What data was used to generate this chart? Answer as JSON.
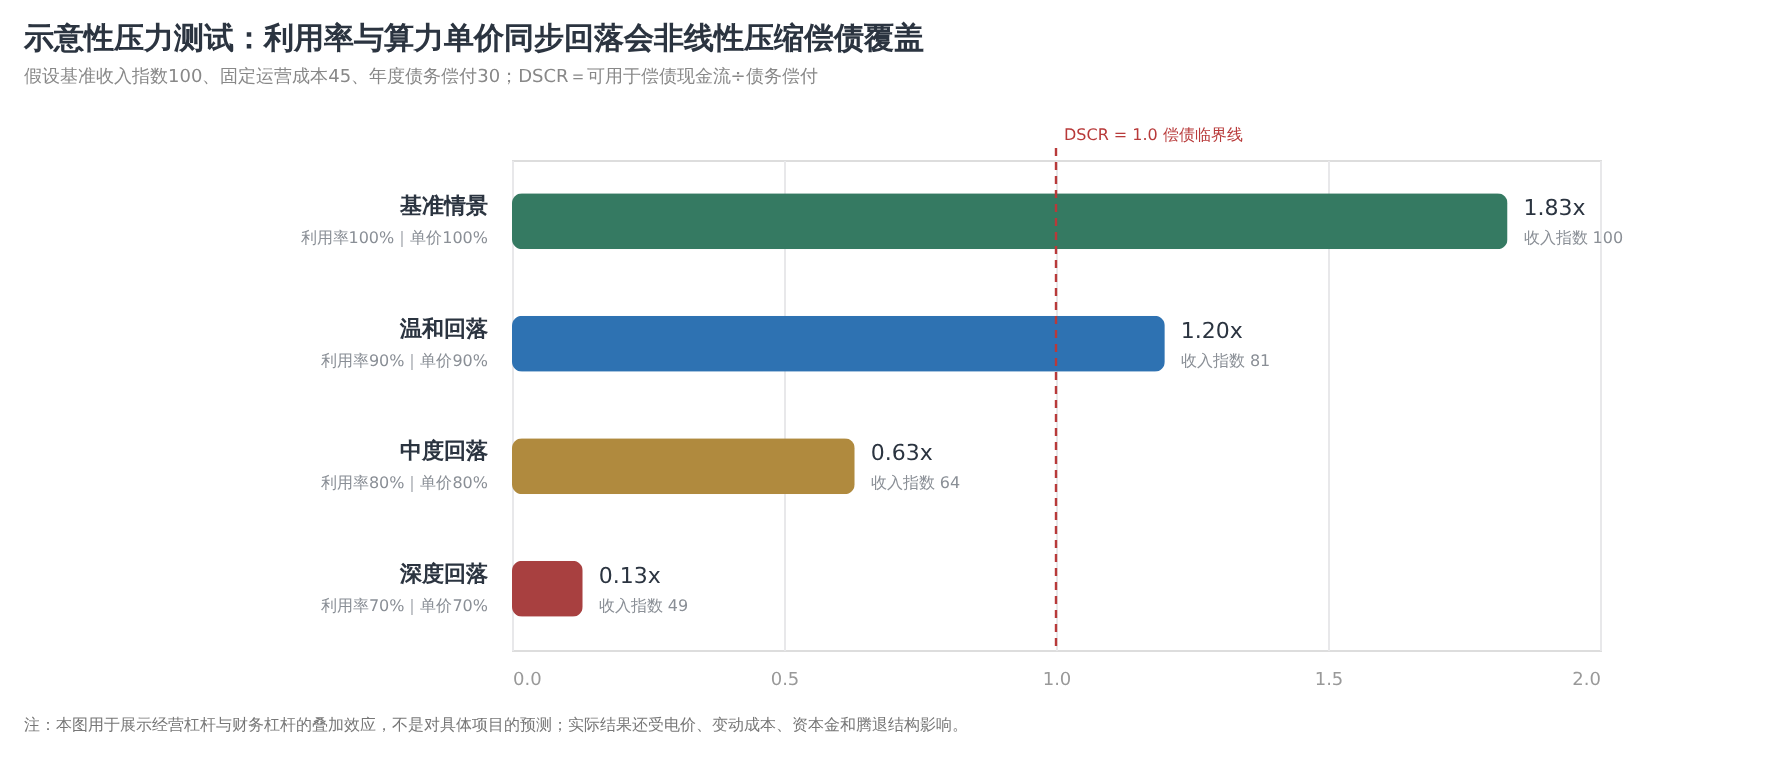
{
  "chart_data": {
    "type": "bar",
    "orientation": "horizontal",
    "title": "示意性压力测试：利用率与算力单价同步回落会非线性压缩偿债覆盖",
    "subtitle": "假设基准收入指数100、固定运营成本45、年度债务偿付30；DSCR＝可用于偿债现金流÷债务偿付",
    "categories": [
      "基准情景",
      "温和回落",
      "中度回落",
      "深度回落"
    ],
    "values": [
      1.83,
      1.2,
      0.63,
      0.13
    ],
    "colors": [
      "#357a62",
      "#2e72b2",
      "#b08a3e",
      "#a84040"
    ],
    "value_labels": [
      "1.83x",
      "1.20x",
      "0.63x",
      "0.13x"
    ],
    "xlim": [
      0,
      2
    ],
    "xticks": [
      {
        "value": 0,
        "label": "0.0"
      },
      {
        "value": 0.5,
        "label": "0.5"
      },
      {
        "value": 1,
        "label": "1.0"
      },
      {
        "value": 1.5,
        "label": "1.5"
      },
      {
        "value": 2,
        "label": "2.0"
      }
    ],
    "grid": "x",
    "ref_lines": [
      {
        "axis": "x",
        "value": 1.0,
        "label": "DSCR = 1.0 偿债临界线",
        "color": "#b83a3a",
        "line_style": "dashed"
      }
    ],
    "annotations": [
      {
        "text": "收入指数 100",
        "x": 1.83,
        "y": "基准情景"
      },
      {
        "text": "收入指数 81",
        "x": 1.2,
        "y": "温和回落"
      },
      {
        "text": "收入指数 64",
        "x": 0.63,
        "y": "中度回落"
      },
      {
        "text": "收入指数 49",
        "x": 0.13,
        "y": "深度回落"
      },
      "利用率100%｜单价100%",
      "利用率90%｜单价90%",
      "利用率80%｜单价80%",
      "利用率70%｜单价70%",
      "注：本图用于展示经营杠杆与财务杠杆的叠加效应，不是对具体项目的预测；实际结果还受电价、变动成本、资本金和腾退结构影响。"
    ]
  }
}
